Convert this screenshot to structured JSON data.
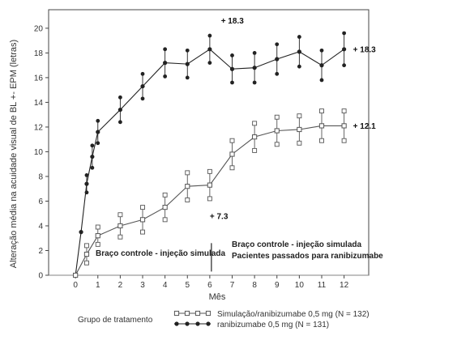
{
  "chart_data": {
    "type": "line",
    "title": "",
    "xlabel": "Mês",
    "ylabel": "Alteração média na acuidade visual de BL +- EPM (letras)",
    "xlim": [
      -1.2,
      13.1
    ],
    "ylim": [
      0,
      21.5
    ],
    "xticks": [
      0,
      1,
      2,
      3,
      4,
      5,
      6,
      7,
      8,
      9,
      10,
      11,
      12
    ],
    "yticks": [
      0,
      2,
      4,
      6,
      8,
      10,
      12,
      14,
      16,
      18,
      20
    ],
    "grid": false,
    "series": [
      {
        "name": "ranibizumabe 0,5 mg (N = 131)",
        "marker": "filled-circle",
        "color": "#222222",
        "x": [
          0,
          0.25,
          0.5,
          0.75,
          1,
          2,
          3,
          4,
          5,
          6,
          7,
          8,
          9,
          10,
          11,
          12
        ],
        "y": [
          0,
          3.5,
          7.4,
          9.6,
          11.6,
          13.4,
          15.3,
          17.2,
          17.1,
          18.3,
          16.7,
          16.8,
          17.5,
          18.1,
          17.0,
          18.3
        ],
        "err": [
          0,
          0,
          0.7,
          0.9,
          0.9,
          1.0,
          1.0,
          1.1,
          1.1,
          1.1,
          1.1,
          1.2,
          1.2,
          1.2,
          1.2,
          1.3
        ]
      },
      {
        "name": "Simulação/ranibizumabe 0,5 mg (N = 132)",
        "marker": "open-square",
        "color": "#555555",
        "x": [
          0,
          0.5,
          1,
          2,
          3,
          4,
          5,
          6,
          7,
          8,
          9,
          10,
          11,
          12
        ],
        "y": [
          0,
          1.7,
          3.2,
          4.0,
          4.5,
          5.5,
          7.2,
          7.3,
          9.8,
          11.2,
          11.7,
          11.8,
          12.1,
          12.1
        ],
        "err": [
          0,
          0.7,
          0.7,
          0.9,
          1.0,
          1.0,
          1.1,
          1.1,
          1.1,
          1.1,
          1.1,
          1.1,
          1.2,
          1.2
        ]
      }
    ],
    "annotations": [
      {
        "text": "+ 18.3",
        "x": 6.5,
        "y": 20.6
      },
      {
        "text": "+ 18.3",
        "x": 12.4,
        "y": 18.3
      },
      {
        "text": "+ 12.1",
        "x": 12.4,
        "y": 12.1
      },
      {
        "text": "+ 7.3",
        "x": 6.0,
        "y": 4.8
      }
    ],
    "phase_labels": {
      "sham": "Braço controle - injeção simulada",
      "rollover_line1": "Braço controle - injeção simulada",
      "rollover_line2": "Pacientes passados para ranibizumabe"
    },
    "phase_boundary_x": 6,
    "legend": {
      "title": "Grupo de tratamento",
      "placement": "bottom"
    }
  }
}
